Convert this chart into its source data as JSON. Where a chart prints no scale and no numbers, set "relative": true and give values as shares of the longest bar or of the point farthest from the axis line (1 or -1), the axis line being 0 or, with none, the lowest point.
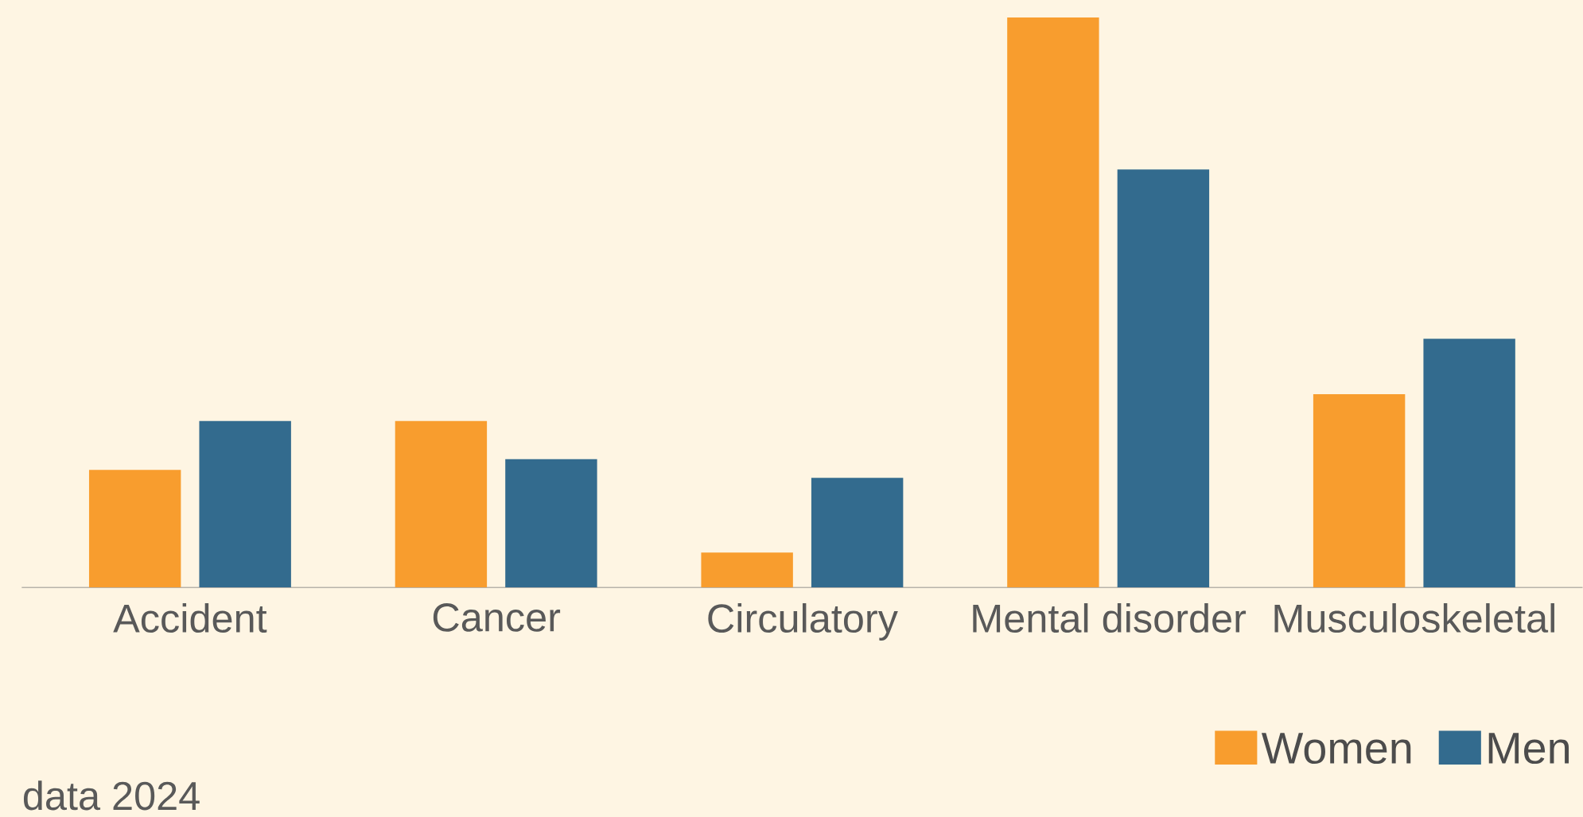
{
  "chart_data": {
    "type": "bar",
    "relative": true,
    "categories": [
      "Accident",
      "Cancer",
      "Circulatory",
      "Mental disorder",
      "Musculoskeletal"
    ],
    "series": [
      {
        "name": "Women",
        "color": "#f89d2e",
        "values": [
          0.206,
          0.292,
          0.061,
          1,
          0.339
        ]
      },
      {
        "name": "Men",
        "color": "#336b8e",
        "values": [
          0.292,
          0.225,
          0.192,
          0.733,
          0.436
        ]
      }
    ],
    "legend": "bottom right",
    "annotations": [
      "data 2024"
    ]
  }
}
